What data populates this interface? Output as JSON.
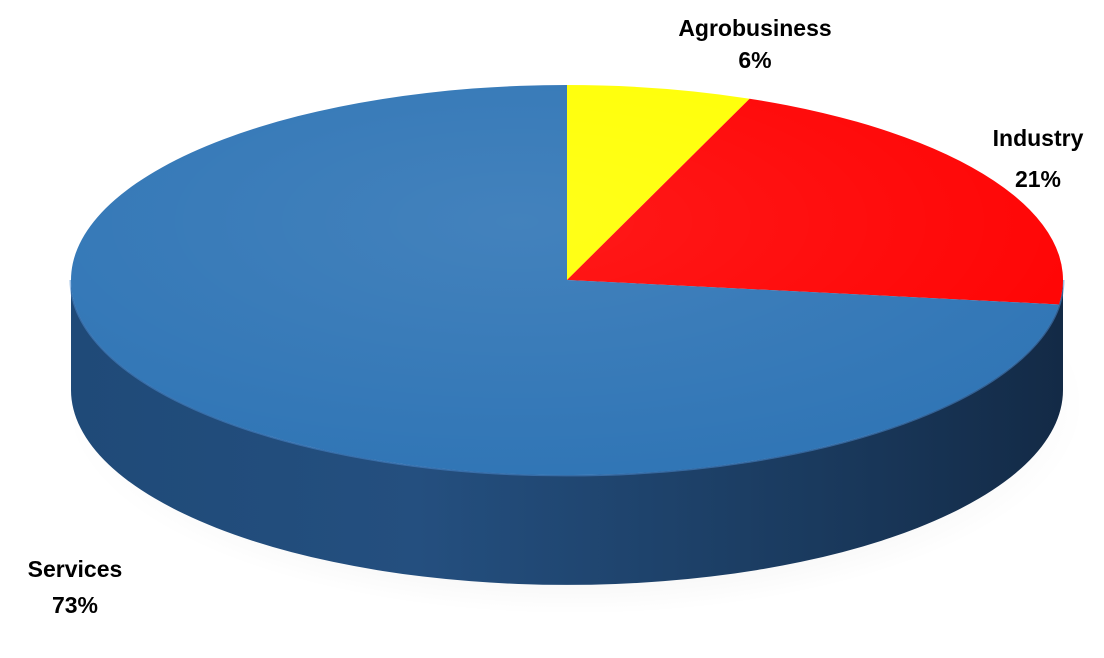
{
  "chart_data": {
    "type": "pie",
    "style": "3d",
    "start_angle_deg": 90,
    "direction": "clockwise",
    "legend": "none",
    "slices": [
      {
        "label": "Agrobusiness",
        "value": 6,
        "value_label": "6%",
        "color": "#FFFF00"
      },
      {
        "label": "Industry",
        "value": 21,
        "value_label": "21%",
        "color": "#FF0000"
      },
      {
        "label": "Services",
        "value": 73,
        "value_label": "73%",
        "color": "#2E74B5"
      }
    ]
  }
}
